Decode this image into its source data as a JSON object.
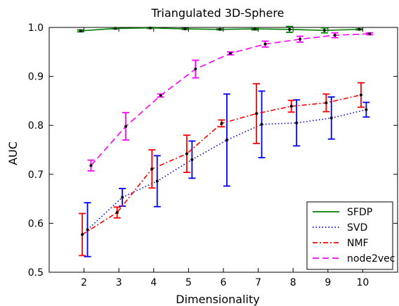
{
  "chart_data": {
    "type": "line",
    "title": "Triangulated 3D-Sphere",
    "xlabel": "Dimensionality",
    "ylabel": "AUC",
    "xlim": [
      1,
      11
    ],
    "ylim": [
      0.5,
      1.0
    ],
    "xticks": [
      "2",
      "3",
      "4",
      "5",
      "6",
      "7",
      "8",
      "9",
      "10"
    ],
    "yticks": [
      "0.5",
      "0.6",
      "0.7",
      "0.8",
      "0.9",
      "1.0"
    ],
    "grid": false,
    "legend_position": "lower-right",
    "series": [
      {
        "name": "SFDP",
        "color": "#008000",
        "style": "solid",
        "x": [
          1.9,
          2.9,
          3.9,
          4.9,
          5.9,
          6.9,
          7.9,
          8.9,
          9.9
        ],
        "values": [
          0.993,
          0.998,
          0.999,
          0.997,
          0.996,
          0.997,
          0.996,
          0.994,
          0.996
        ],
        "errors": [
          0.002,
          0.001,
          0.001,
          0.001,
          0.001,
          0.002,
          0.006,
          0.005,
          0.001
        ]
      },
      {
        "name": "SVD",
        "color": "#0000ff",
        "style": "dotted",
        "x": [
          2.1,
          3.1,
          4.1,
          5.1,
          6.1,
          7.1,
          8.1,
          9.1,
          10.1
        ],
        "values": [
          0.587,
          0.653,
          0.686,
          0.73,
          0.77,
          0.802,
          0.805,
          0.815,
          0.832
        ],
        "errors": [
          0.055,
          0.018,
          0.052,
          0.038,
          0.094,
          0.068,
          0.047,
          0.043,
          0.015
        ]
      },
      {
        "name": "NMF",
        "color": "#ff0000",
        "style": "dash-dot",
        "x": [
          1.95,
          2.95,
          3.95,
          4.95,
          5.95,
          6.95,
          7.95,
          8.95,
          9.95
        ],
        "values": [
          0.577,
          0.622,
          0.711,
          0.742,
          0.804,
          0.824,
          0.839,
          0.846,
          0.862
        ],
        "errors": [
          0.043,
          0.011,
          0.039,
          0.038,
          0.007,
          0.061,
          0.012,
          0.018,
          0.025
        ]
      },
      {
        "name": "node2vec",
        "color": "#ff00ff",
        "style": "dashed",
        "x": [
          2.2,
          3.2,
          4.2,
          5.2,
          6.2,
          7.2,
          8.2,
          9.2,
          10.2
        ],
        "values": [
          0.718,
          0.798,
          0.861,
          0.915,
          0.947,
          0.966,
          0.976,
          0.984,
          0.987
        ],
        "errors": [
          0.011,
          0.028,
          0.003,
          0.018,
          0.003,
          0.006,
          0.006,
          0.005,
          0.002
        ]
      }
    ]
  }
}
